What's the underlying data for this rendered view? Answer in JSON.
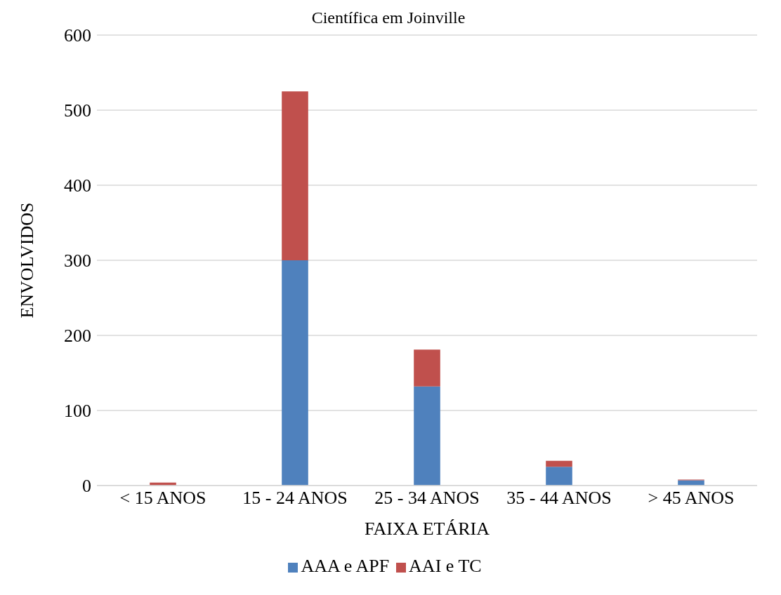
{
  "chart_data": {
    "type": "bar",
    "title": "Científica em Joinville",
    "xlabel": "FAIXA ETÁRIA",
    "ylabel": "ENVOLVIDOS",
    "categories": [
      "< 15 ANOS",
      "15 - 24 ANOS",
      "25 - 34 ANOS",
      "35 - 44 ANOS",
      "> 45 ANOS"
    ],
    "stacked": true,
    "series": [
      {
        "name": "AAA e APF",
        "color": "#4f81bd",
        "values": [
          0,
          300,
          132,
          25,
          7
        ]
      },
      {
        "name": "AAI e TC",
        "color": "#c0504d",
        "values": [
          4,
          225,
          49,
          8,
          1
        ]
      }
    ],
    "ylim": [
      0,
      600
    ],
    "yticks": [
      0,
      100,
      200,
      300,
      400,
      500,
      600
    ],
    "grid": "y",
    "legend": "bottom"
  }
}
